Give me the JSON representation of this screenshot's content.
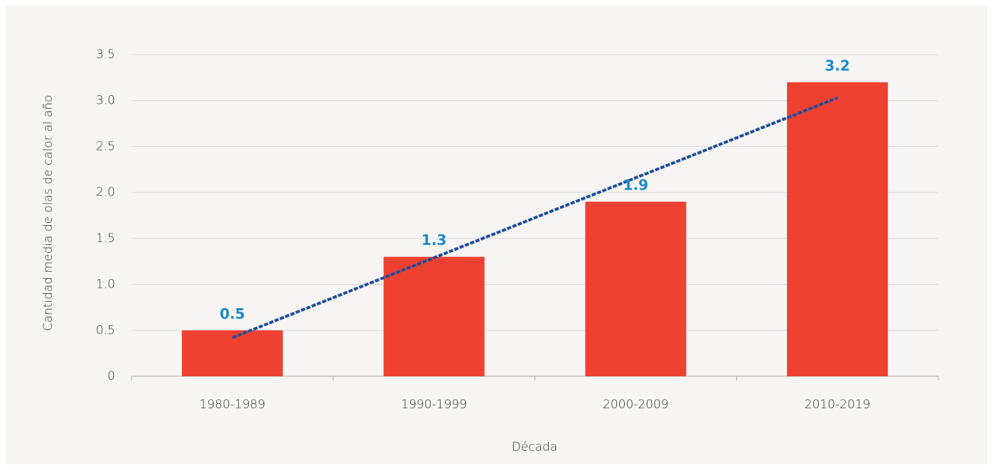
{
  "chart_data": {
    "type": "bar",
    "categories": [
      "1980-1989",
      "1990-1999",
      "2000-2009",
      "2010-2019"
    ],
    "values": [
      0.5,
      1.3,
      1.9,
      3.2
    ],
    "color": "#ee4132",
    "value_label_color": "#1b8bc9",
    "xlabel": "Década",
    "ylabel": "Cantidad media de olas de calor al año",
    "ylim": [
      0,
      3.5
    ],
    "yticks": [
      0,
      0.5,
      {
        "value": 1,
        "label": "1.0"
      },
      1.5,
      {
        "value": 2,
        "label": "2.0"
      },
      2.5,
      {
        "value": 3,
        "label": "3.0"
      },
      3.5
    ],
    "grid": true,
    "trendline": {
      "color": "#1f4e9a",
      "values": [
        0.42,
        3.03
      ]
    }
  }
}
